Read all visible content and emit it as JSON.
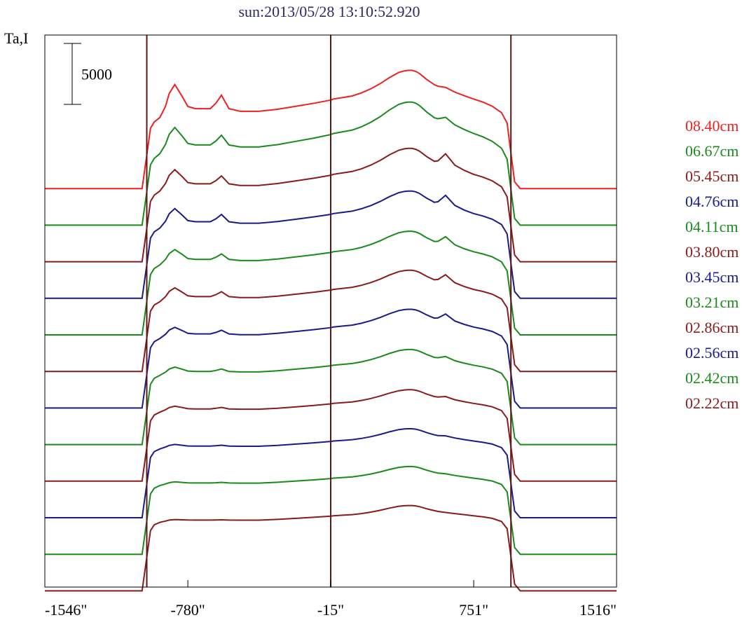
{
  "window": {
    "title": "sun:2013/05/28 13:10:52.920"
  },
  "chart_data": {
    "type": "line",
    "title": "sun:2013/05/28 13:10:52.920",
    "ylabel": "Ta,I",
    "xlabel": "",
    "scale_bar_label": "5000",
    "scale_bar_value": 5000,
    "x_tick_labels": [
      "-1546\"",
      "-780\"",
      "-15\"",
      "751\"",
      "1516\""
    ],
    "x_ticks": [
      -1546,
      -780,
      -15,
      751,
      1516
    ],
    "xlim": [
      -1546,
      1516
    ],
    "reference_lines": [
      -1000,
      -15,
      950
    ],
    "legend_position": "right",
    "x": [
      -1546,
      -1450,
      -1350,
      -1250,
      -1180,
      -1120,
      -1080,
      -1050,
      -1025,
      -1000,
      -980,
      -960,
      -930,
      -900,
      -880,
      -850,
      -810,
      -780,
      -740,
      -700,
      -660,
      -630,
      -600,
      -560,
      -500,
      -400,
      -300,
      -200,
      -100,
      -15,
      0,
      50,
      100,
      150,
      200,
      250,
      300,
      350,
      380,
      400,
      420,
      440,
      460,
      480,
      500,
      520,
      540,
      560,
      580,
      600,
      650,
      700,
      750,
      800,
      850,
      900,
      930,
      950,
      970,
      1000,
      1050,
      1100,
      1200,
      1300,
      1400,
      1450,
      1516
    ],
    "profile_rows": {
      "0": [
        0,
        0,
        0,
        0,
        0,
        0,
        0,
        0,
        0,
        0.5,
        0.9,
        0.98,
        1.0,
        1.0,
        1.0,
        1.0,
        1.0,
        1.0,
        1.0,
        1.0,
        1.0,
        1.0,
        1.0,
        1.0,
        1.0,
        1.0,
        1.0,
        1.0,
        1.0,
        1.0,
        1.0,
        1.0,
        1.0,
        1.0,
        1.0,
        1.0,
        1.0,
        1.0,
        1.0,
        1.0,
        1.0,
        1.0,
        1.0,
        1.0,
        1.0,
        1.0,
        1.0,
        1.0,
        1.0,
        1.0,
        1.0,
        1.0,
        1.0,
        1.0,
        1.0,
        0.98,
        0.9,
        0.5,
        0.1,
        0,
        0,
        0,
        0,
        0,
        0,
        0,
        0
      ],
      "env": [
        0,
        0,
        0,
        0,
        0,
        0,
        0,
        0,
        0,
        0,
        0,
        0.02,
        0.08,
        0.14,
        0.18,
        0.2,
        0.2,
        0.2,
        0.2,
        0.2,
        0.2,
        0.2,
        0.2,
        0.2,
        0.2,
        0.2,
        0.24,
        0.3,
        0.36,
        0.42,
        0.44,
        0.47,
        0.5,
        0.56,
        0.64,
        0.74,
        0.86,
        0.96,
        0.99,
        1.0,
        1.0,
        0.98,
        0.94,
        0.88,
        0.82,
        0.77,
        0.72,
        0.68,
        0.65,
        0.62,
        0.56,
        0.5,
        0.44,
        0.38,
        0.3,
        0.2,
        0.1,
        0.04,
        0,
        0,
        0,
        0,
        0,
        0,
        0,
        0,
        0
      ],
      "west": [
        0,
        0,
        0,
        0,
        0,
        0,
        0,
        0,
        0,
        0,
        0,
        0,
        0,
        0.3,
        0.7,
        1.0,
        0.55,
        0.18,
        0.1,
        0.1,
        0.1,
        0.3,
        0.6,
        0.1,
        0,
        0,
        0,
        0,
        0,
        0,
        0,
        0,
        0,
        0,
        0,
        0,
        0,
        0,
        0,
        0,
        0,
        0,
        0,
        0,
        0,
        0,
        0,
        0,
        0,
        0,
        0,
        0,
        0,
        0,
        0,
        0,
        0,
        0,
        0,
        0,
        0,
        0,
        0,
        0,
        0,
        0,
        0
      ],
      "east": [
        0,
        0,
        0,
        0,
        0,
        0,
        0,
        0,
        0,
        0,
        0,
        0,
        0,
        0,
        0,
        0,
        0,
        0,
        0,
        0,
        0,
        0,
        0,
        0,
        0,
        0,
        0,
        0,
        0,
        0,
        0,
        0,
        0,
        0,
        0,
        0,
        0,
        0,
        0,
        0,
        0,
        0,
        0,
        0,
        0,
        0,
        0,
        0.2,
        0.6,
        1.0,
        0.3,
        0.1,
        0,
        0,
        0,
        0,
        0,
        0,
        0,
        0,
        0,
        0,
        0,
        0,
        0,
        0,
        0
      ]
    },
    "series": [
      {
        "name": "08.40cm",
        "color": "#f02020",
        "disk": 5500,
        "envelope": 4200,
        "west_spike": 2200,
        "east_spike": 200,
        "baseline": 32000
      },
      {
        "name": "06.67cm",
        "color": "#1a8a1a",
        "disk": 5500,
        "envelope": 4600,
        "west_spike": 1600,
        "east_spike": 500,
        "baseline": 29000
      },
      {
        "name": "05.45cm",
        "color": "#8b1a1a",
        "disk": 5500,
        "envelope": 3800,
        "west_spike": 1300,
        "east_spike": 1000,
        "baseline": 26000
      },
      {
        "name": "04.76cm",
        "color": "#1a1a8b",
        "disk": 5500,
        "envelope": 3300,
        "west_spike": 1200,
        "east_spike": 900,
        "baseline": 23000
      },
      {
        "name": "04.11cm",
        "color": "#1a8a1a",
        "disk": 5500,
        "envelope": 3000,
        "west_spike": 900,
        "east_spike": 700,
        "baseline": 20000
      },
      {
        "name": "03.80cm",
        "color": "#8b1a1a",
        "disk": 5500,
        "envelope": 2800,
        "west_spike": 800,
        "east_spike": 700,
        "baseline": 17000
      },
      {
        "name": "03.45cm",
        "color": "#1a1a8b",
        "disk": 5500,
        "envelope": 2600,
        "west_spike": 600,
        "east_spike": 600,
        "baseline": 14000
      },
      {
        "name": "03.21cm",
        "color": "#1a8a1a",
        "disk": 5500,
        "envelope": 2300,
        "west_spike": 400,
        "east_spike": 300,
        "baseline": 11000
      },
      {
        "name": "02.86cm",
        "color": "#8b1a1a",
        "disk": 5500,
        "envelope": 2000,
        "west_spike": 250,
        "east_spike": 200,
        "baseline": 8000
      },
      {
        "name": "02.56cm",
        "color": "#1a1a8b",
        "disk": 5500,
        "envelope": 1800,
        "west_spike": 150,
        "east_spike": 100,
        "baseline": 5000
      },
      {
        "name": "02.42cm",
        "color": "#1a8a1a",
        "disk": 5500,
        "envelope": 1700,
        "west_spike": 100,
        "east_spike": 50,
        "baseline": 2000
      },
      {
        "name": "02.22cm",
        "color": "#8b1a1a",
        "disk": 5500,
        "envelope": 1500,
        "west_spike": 50,
        "east_spike": 0,
        "baseline": -1000
      }
    ]
  }
}
